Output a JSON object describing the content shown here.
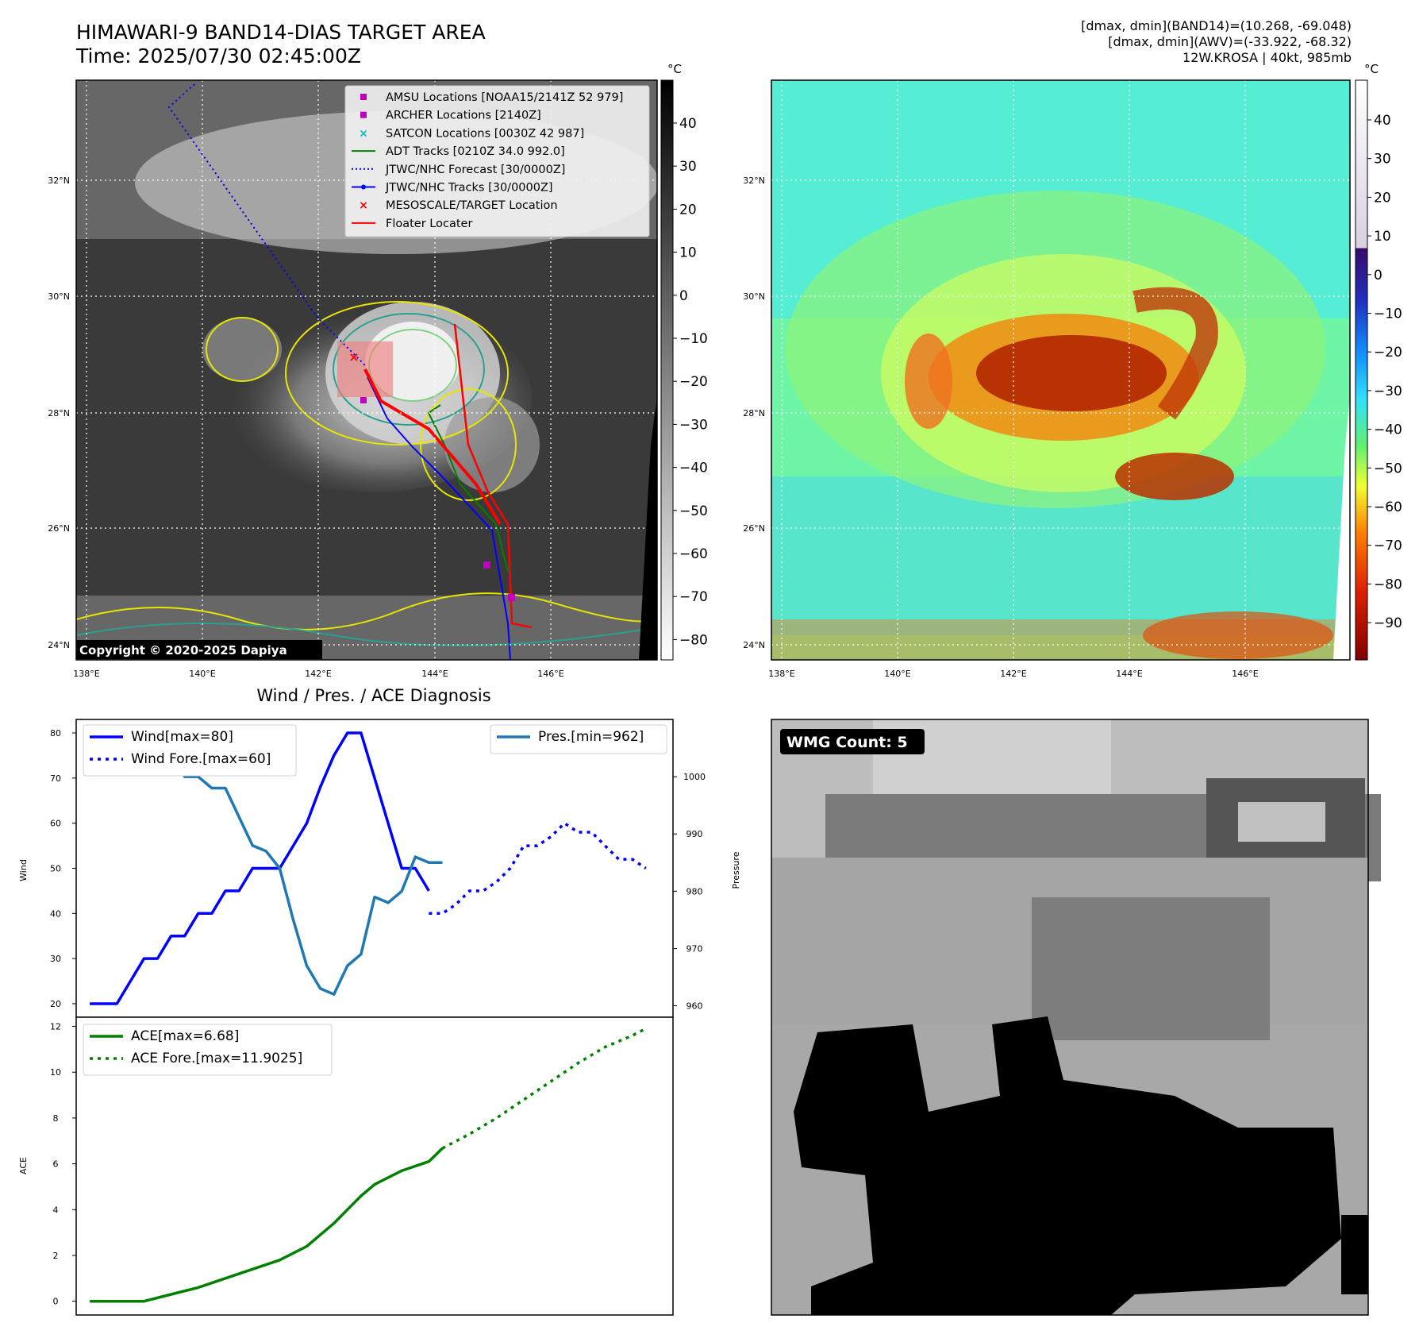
{
  "header": {
    "title_line1": "HIMAWARI-9 BAND14-DIAS TARGET AREA",
    "title_line2": "Time: 2025/07/30 02:45:00Z",
    "info_line1": "[dmax, dmin](BAND14)=(10.268, -69.048)",
    "info_line2": "[dmax, dmin](AWV)=(-33.922, -68.32)",
    "info_line3": "12W.KROSA | 40kt, 985mb"
  },
  "ir_map": {
    "lat_labels": [
      "32°N",
      "30°N",
      "28°N",
      "26°N",
      "24°N"
    ],
    "lon_labels": [
      "138°E",
      "140°E",
      "142°E",
      "144°E",
      "146°E"
    ],
    "colorbar_unit": "°C",
    "colorbar_ticks": [
      "40",
      "30",
      "20",
      "10",
      "0",
      "−10",
      "−20",
      "−30",
      "−40",
      "−50",
      "−60",
      "−70",
      "−80"
    ],
    "copyright": "Copyright © 2020-2025 Dapiya",
    "legend": [
      {
        "label": "AMSU Locations [NOAA15/2141Z 52 979]",
        "marker": "square",
        "color": "#bf00bf"
      },
      {
        "label": "ARCHER Locations [2140Z]",
        "marker": "square",
        "color": "#bf00bf"
      },
      {
        "label": "SATCON Locations [0030Z 42 987]",
        "marker": "x",
        "color": "#00bfbf"
      },
      {
        "label": "ADT Tracks [0210Z 34.0 992.0]",
        "marker": "line",
        "color": "#008000"
      },
      {
        "label": "JTWC/NHC Forecast [30/0000Z]",
        "marker": "dotted",
        "color": "#0000ff"
      },
      {
        "label": "JTWC/NHC Tracks [30/0000Z]",
        "marker": "line-dot",
        "color": "#0000ff"
      },
      {
        "label": "MESOSCALE/TARGET Location",
        "marker": "x",
        "color": "#ff0000"
      },
      {
        "label": "Floater Locater",
        "marker": "line",
        "color": "#ff0000"
      }
    ]
  },
  "awv_map": {
    "lat_labels": [
      "32°N",
      "30°N",
      "28°N",
      "26°N",
      "24°N"
    ],
    "lon_labels": [
      "138°E",
      "140°E",
      "142°E",
      "144°E",
      "146°E"
    ],
    "colorbar_unit": "°C",
    "colorbar_ticks": [
      "40",
      "30",
      "20",
      "10",
      "0",
      "−10",
      "−20",
      "−30",
      "−40",
      "−50",
      "−60",
      "−70",
      "−80",
      "−90"
    ]
  },
  "wmg_panel": {
    "badge": "WMG Count: 5"
  },
  "chart_data": [
    {
      "type": "line",
      "title": "Wind / Pres. / ACE Diagnosis",
      "ylabel": "Wind",
      "ylabel_right": "Pressure",
      "ylim": [
        17,
        83
      ],
      "ylim_right": [
        958,
        1010
      ],
      "yticks": [
        20,
        30,
        40,
        50,
        60,
        70,
        80
      ],
      "yticks_right": [
        960,
        970,
        980,
        990,
        1000
      ],
      "xlim": [
        0,
        44
      ],
      "series": [
        {
          "name": "Wind[max=80]",
          "axis": "left",
          "color": "#0000ff",
          "style": "solid",
          "x": [
            1,
            2,
            3,
            4,
            5,
            6,
            7,
            8,
            9,
            10,
            11,
            12,
            13,
            14,
            15,
            16,
            17,
            18,
            19,
            20,
            21,
            22,
            23,
            24,
            25,
            26
          ],
          "values": [
            20,
            20,
            20,
            25,
            30,
            30,
            35,
            35,
            40,
            40,
            45,
            45,
            50,
            50,
            50,
            55,
            60,
            68,
            75,
            80,
            80,
            70,
            60,
            50,
            50,
            45
          ]
        },
        {
          "name": "Wind Fore.[max=60]",
          "axis": "left",
          "color": "#0000ff",
          "style": "dotted",
          "x": [
            26,
            27,
            28,
            29,
            30,
            31,
            32,
            33,
            34,
            35,
            36,
            37,
            38,
            39,
            40,
            41,
            42
          ],
          "values": [
            40,
            40,
            42,
            45,
            45,
            47,
            50,
            55,
            55,
            57,
            60,
            58,
            58,
            55,
            52,
            52,
            50
          ]
        },
        {
          "name": "Pres.[min=962]",
          "axis": "right",
          "color": "#1f77b4",
          "style": "solid",
          "x": [
            1,
            2,
            3,
            4,
            5,
            6,
            7,
            8,
            9,
            10,
            11,
            12,
            13,
            14,
            15,
            16,
            17,
            18,
            19,
            20,
            21,
            22,
            23,
            24,
            25,
            26,
            27
          ],
          "values": [
            1008,
            1008,
            1008,
            1005,
            1005,
            1004,
            1004,
            1000,
            1000,
            998,
            998,
            993,
            988,
            987,
            984,
            975,
            967,
            963,
            962,
            967,
            969,
            979,
            978,
            980,
            986,
            985,
            985
          ]
        }
      ],
      "series_overlay_note": ""
    },
    {
      "type": "line",
      "ylabel": "ACE",
      "ylim": [
        -0.6,
        12.4
      ],
      "yticks": [
        0,
        2,
        4,
        6,
        8,
        10,
        12
      ],
      "xlim": [
        0,
        44
      ],
      "series": [
        {
          "name": "ACE[max=6.68]",
          "color": "#008000",
          "style": "solid",
          "x": [
            1,
            3,
            5,
            7,
            9,
            11,
            13,
            15,
            17,
            19,
            20,
            21,
            22,
            24,
            26,
            27
          ],
          "values": [
            0,
            0,
            0,
            0.3,
            0.6,
            1.0,
            1.4,
            1.8,
            2.4,
            3.4,
            4.0,
            4.6,
            5.1,
            5.7,
            6.1,
            6.68
          ]
        },
        {
          "name": "ACE Fore.[max=11.9025]",
          "color": "#008000",
          "style": "dotted",
          "x": [
            27,
            29,
            31,
            33,
            35,
            37,
            39,
            41,
            42
          ],
          "values": [
            6.68,
            7.3,
            8.0,
            8.8,
            9.6,
            10.4,
            11.1,
            11.6,
            11.9025
          ]
        }
      ]
    }
  ]
}
